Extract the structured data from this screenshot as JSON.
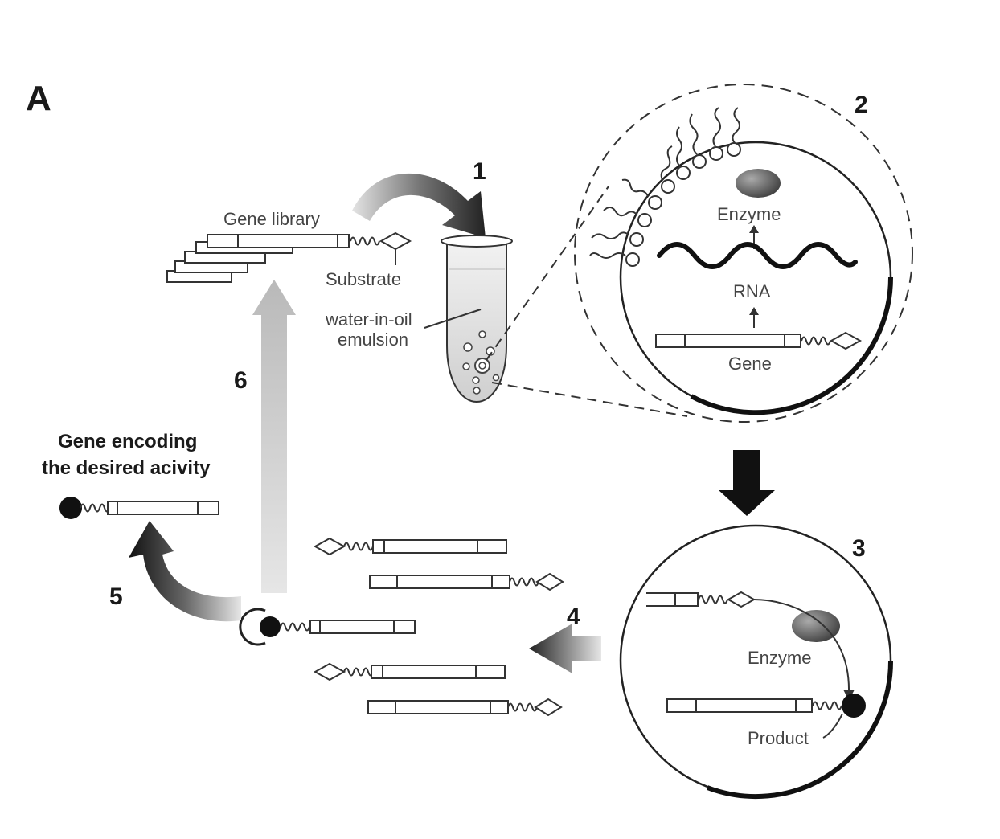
{
  "panel_label": "A",
  "steps": [
    "1",
    "2",
    "3",
    "4",
    "5",
    "6"
  ],
  "labels": {
    "gene_library": "Gene library",
    "substrate": "Substrate",
    "emulsion_line1": "water-in-oil",
    "emulsion_line2": "emulsion",
    "enzyme": "Enzyme",
    "rna": "RNA",
    "gene": "Gene",
    "enzyme_step3": "Enzyme",
    "product": "Product",
    "desired_line1": "Gene encoding",
    "desired_line2": "the desired acivity"
  }
}
